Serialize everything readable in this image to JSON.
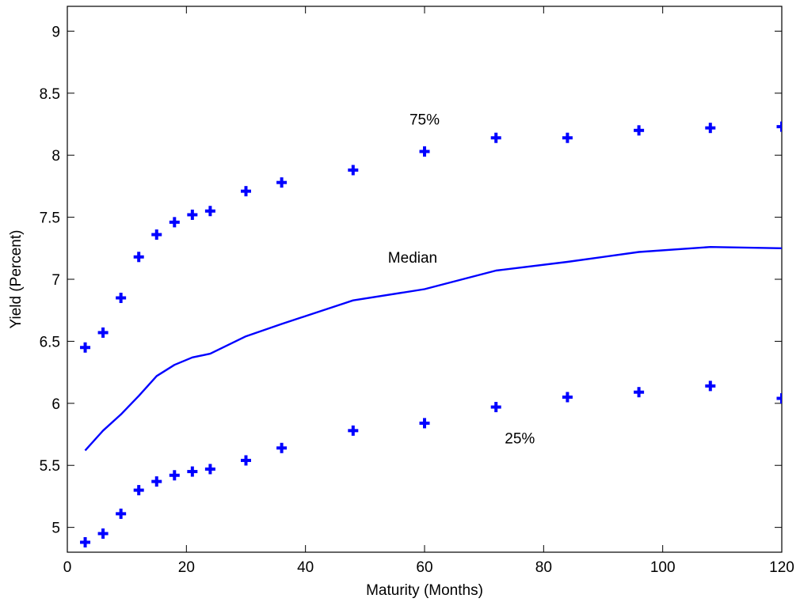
{
  "chart_data": {
    "type": "line",
    "title": "",
    "xlabel": "Maturity (Months)",
    "ylabel": "Yield (Percent)",
    "xlim": [
      0,
      120
    ],
    "ylim": [
      4.8,
      9.2
    ],
    "xticks": [
      0,
      20,
      40,
      60,
      80,
      100,
      120
    ],
    "yticks": [
      5,
      5.5,
      6,
      6.5,
      7,
      7.5,
      8,
      8.5,
      9
    ],
    "xtick_labels": [
      "0",
      "20",
      "40",
      "60",
      "80",
      "100",
      "120"
    ],
    "ytick_labels": [
      "5",
      "5.5",
      "6",
      "6.5",
      "7",
      "7.5",
      "8",
      "8.5",
      "9"
    ],
    "grid": false,
    "x": [
      3,
      6,
      9,
      12,
      15,
      18,
      21,
      24,
      30,
      36,
      48,
      60,
      72,
      84,
      96,
      108,
      120
    ],
    "series": [
      {
        "name": "75%",
        "style": "markers",
        "marker": "plus",
        "color": "#0000ff",
        "values": [
          6.45,
          6.57,
          6.85,
          7.18,
          7.36,
          7.46,
          7.52,
          7.55,
          7.71,
          7.78,
          7.88,
          8.03,
          8.14,
          8.14,
          8.2,
          8.22,
          8.23
        ]
      },
      {
        "name": "Median",
        "style": "line",
        "color": "#0000ff",
        "values": [
          5.62,
          5.78,
          5.91,
          6.06,
          6.22,
          6.31,
          6.37,
          6.4,
          6.54,
          6.64,
          6.83,
          6.92,
          7.07,
          7.14,
          7.22,
          7.26,
          7.25
        ]
      },
      {
        "name": "25%",
        "style": "markers",
        "marker": "plus",
        "color": "#0000ff",
        "values": [
          4.88,
          4.95,
          5.11,
          5.3,
          5.37,
          5.42,
          5.45,
          5.47,
          5.54,
          5.64,
          5.78,
          5.84,
          5.97,
          6.05,
          6.09,
          6.14,
          6.04
        ]
      }
    ],
    "annotations": [
      {
        "text": "75%",
        "x": 60,
        "y": 8.29
      },
      {
        "text": "Median",
        "x": 58,
        "y": 7.18
      },
      {
        "text": "25%",
        "x": 76,
        "y": 5.72
      }
    ]
  }
}
